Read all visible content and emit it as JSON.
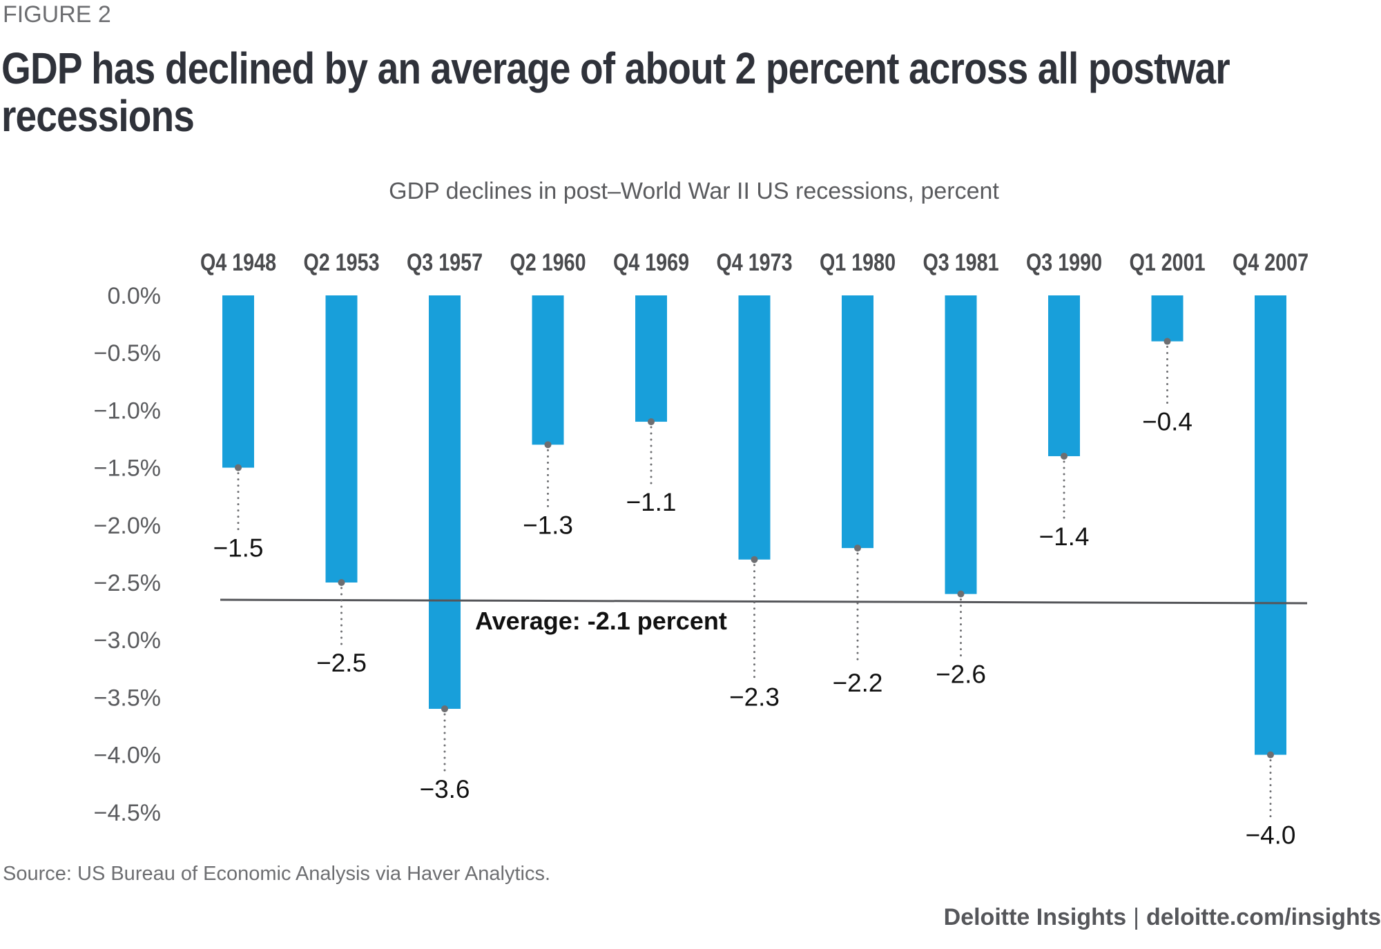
{
  "figure_label": "FIGURE 2",
  "title_lines": [
    "GDP has declined by an average of about 2 percent across all postwar",
    "recessions"
  ],
  "source": "Source: US Bureau of Economic Analysis via Haver Analytics.",
  "footer": {
    "brand": "Deloitte Insights",
    "separator": "|",
    "url": "deloitte.com/insights"
  },
  "colors": {
    "bar": "#189fda",
    "average_line": "#55565a",
    "leader": "#6d6e71",
    "tick_text": "#5a5b5e",
    "category_text": "#4a4b4e",
    "value_text": "#111111"
  },
  "chart_data": {
    "type": "bar",
    "title": "GDP declines in post–World War II US recessions, percent",
    "xlabel": "",
    "ylabel": "",
    "categories": [
      "Q4 1948",
      "Q2 1953",
      "Q3 1957",
      "Q2 1960",
      "Q4 1969",
      "Q4 1973",
      "Q1 1980",
      "Q3 1981",
      "Q3 1990",
      "Q1 2001",
      "Q4 2007"
    ],
    "values": [
      -1.5,
      -2.5,
      -3.6,
      -1.3,
      -1.1,
      -2.3,
      -2.2,
      -2.6,
      -1.4,
      -0.4,
      -4.0
    ],
    "value_labels": [
      "−1.5",
      "−2.5",
      "−3.6",
      "−1.3",
      "−1.1",
      "−2.3",
      "−2.2",
      "−2.6",
      "−1.4",
      "−0.4",
      "−4.0"
    ],
    "ylim": [
      -4.5,
      0
    ],
    "yticks": [
      0,
      -0.5,
      -1.0,
      -1.5,
      -2.0,
      -2.5,
      -3.0,
      -3.5,
      -4.0,
      -4.5
    ],
    "ytick_labels": [
      "0.0%",
      "−0.5%",
      "−1.0%",
      "−1.5%",
      "−2.0%",
      "−2.5%",
      "−3.0%",
      "−3.5%",
      "−4.0%",
      "−4.5%"
    ],
    "category_axis_position": "top",
    "grid": false,
    "legend": "none",
    "average": {
      "value": -2.1,
      "label": "Average: -2.1 percent"
    }
  }
}
